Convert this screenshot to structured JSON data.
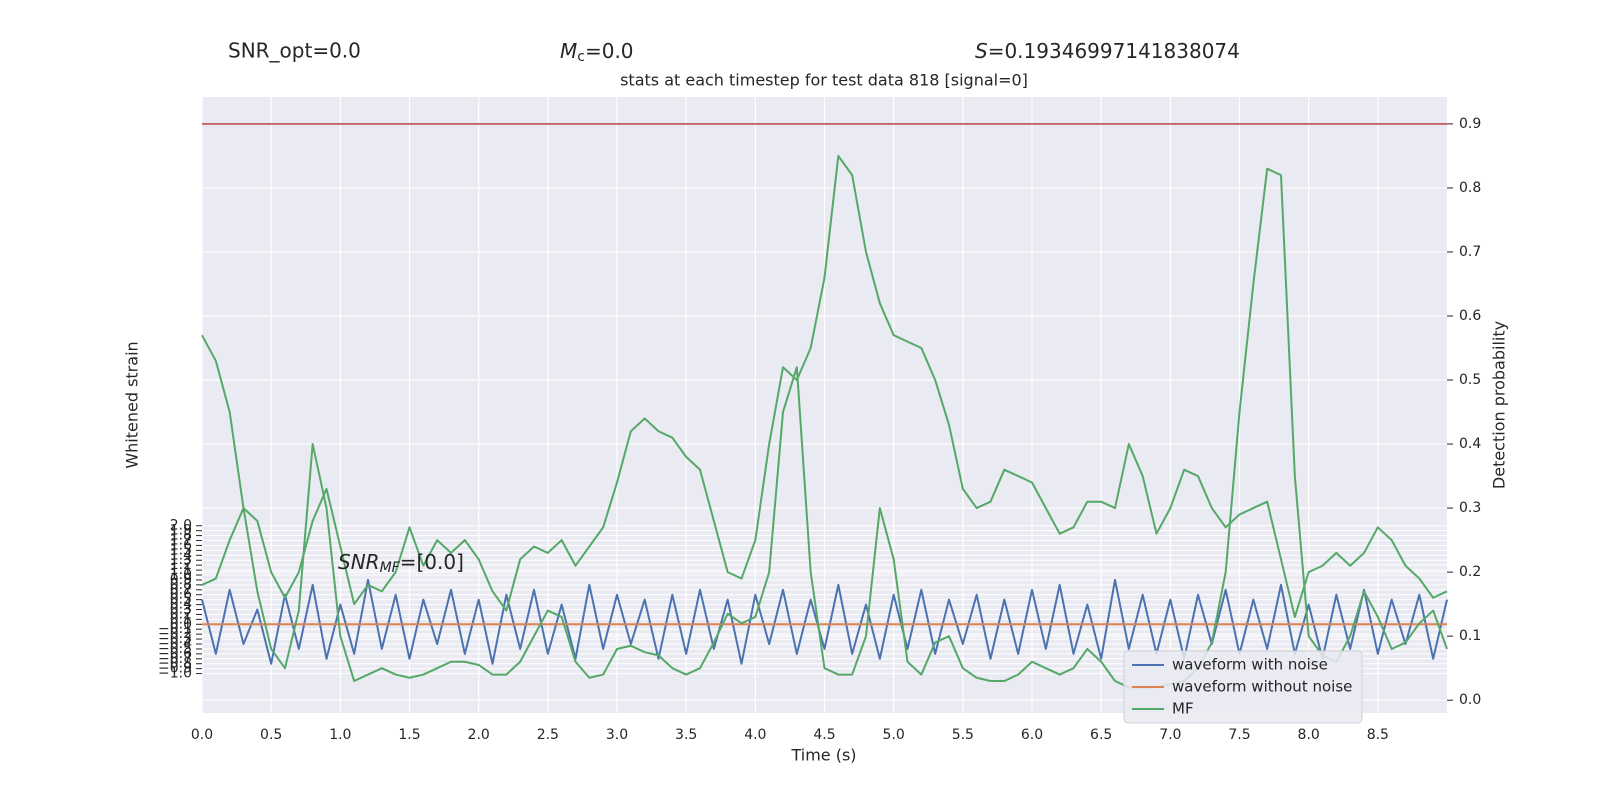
{
  "chart_data": {
    "type": "line",
    "title": "stats at each timestep for test data 818 [signal=0]",
    "annotations": {
      "snr_opt": "SNR_opt=0.0",
      "mc": {
        "symbol": "M",
        "subscript": "c",
        "text": "=0.0"
      },
      "s": {
        "symbol": "S",
        "text": "=0.19346997141838074"
      },
      "snr_mf": {
        "symbol": "SNR",
        "subscript": "MF",
        "text": "=[0.0]"
      }
    },
    "xlabel": "Time (s)",
    "ylabel": "Whitened strain",
    "y2label": "Detection probability",
    "xlim": [
      0,
      9
    ],
    "ylim": [
      -1.8,
      10.7
    ],
    "y2lim": [
      -0.02,
      0.942
    ],
    "xticks": [
      {
        "value": 0,
        "label": "0.0"
      },
      {
        "value": 0.5,
        "label": "0.5"
      },
      {
        "value": 1,
        "label": "1.0"
      },
      {
        "value": 1.5,
        "label": "1.5"
      },
      {
        "value": 2,
        "label": "2.0"
      },
      {
        "value": 2.5,
        "label": "2.5"
      },
      {
        "value": 3,
        "label": "3.0"
      },
      {
        "value": 3.5,
        "label": "3.5"
      },
      {
        "value": 4,
        "label": "4.0"
      },
      {
        "value": 4.5,
        "label": "4.5"
      },
      {
        "value": 5,
        "label": "5.0"
      },
      {
        "value": 5.5,
        "label": "5.5"
      },
      {
        "value": 6,
        "label": "6.0"
      },
      {
        "value": 6.5,
        "label": "6.5"
      },
      {
        "value": 7,
        "label": "7.0"
      },
      {
        "value": 7.5,
        "label": "7.5"
      },
      {
        "value": 8,
        "label": "8.0"
      },
      {
        "value": 8.5,
        "label": "8.5"
      }
    ],
    "yticks": [
      {
        "value": -1,
        "label": "−1.0"
      },
      {
        "value": -0.9,
        "label": "−0.9"
      },
      {
        "value": -0.8,
        "label": "−0.8"
      },
      {
        "value": -0.7,
        "label": "−0.7"
      },
      {
        "value": -0.6,
        "label": "−0.6"
      },
      {
        "value": -0.5,
        "label": "−0.5"
      },
      {
        "value": -0.4,
        "label": "−0.4"
      },
      {
        "value": -0.3,
        "label": "−0.3"
      },
      {
        "value": -0.2,
        "label": "−0.2"
      },
      {
        "value": -0.1,
        "label": "−0.1"
      },
      {
        "value": 0,
        "label": "0.0"
      },
      {
        "value": 0.1,
        "label": "0.1"
      },
      {
        "value": 0.2,
        "label": "0.2"
      },
      {
        "value": 0.3,
        "label": "0.3"
      },
      {
        "value": 0.4,
        "label": "0.4"
      },
      {
        "value": 0.5,
        "label": "0.5"
      },
      {
        "value": 0.6,
        "label": "0.6"
      },
      {
        "value": 0.7,
        "label": "0.7"
      },
      {
        "value": 0.8,
        "label": "0.8"
      },
      {
        "value": 0.9,
        "label": "0.9"
      },
      {
        "value": 1,
        "label": "1.0"
      },
      {
        "value": 1.1,
        "label": "1.1"
      },
      {
        "value": 1.2,
        "label": "1.2"
      },
      {
        "value": 1.3,
        "label": "1.3"
      },
      {
        "value": 1.4,
        "label": "1.4"
      },
      {
        "value": 1.5,
        "label": "1.5"
      },
      {
        "value": 1.6,
        "label": "1.6"
      },
      {
        "value": 1.7,
        "label": "1.7"
      },
      {
        "value": 1.8,
        "label": "1.8"
      },
      {
        "value": 1.9,
        "label": "1.9"
      },
      {
        "value": 2,
        "label": "2.0"
      }
    ],
    "y2ticks": [
      {
        "value": 0,
        "label": "0.0"
      },
      {
        "value": 0.1,
        "label": "0.1"
      },
      {
        "value": 0.2,
        "label": "0.2"
      },
      {
        "value": 0.3,
        "label": "0.3"
      },
      {
        "value": 0.4,
        "label": "0.4"
      },
      {
        "value": 0.5,
        "label": "0.5"
      },
      {
        "value": 0.6,
        "label": "0.6"
      },
      {
        "value": 0.7,
        "label": "0.7"
      },
      {
        "value": 0.8,
        "label": "0.8"
      },
      {
        "value": 0.9,
        "label": "0.9"
      }
    ],
    "grid": true,
    "legend": "lower right",
    "threshold": 0.9,
    "threshold_color": "#c44e52",
    "x": [
      0,
      0.1,
      0.2,
      0.3,
      0.4,
      0.5,
      0.6,
      0.7,
      0.8,
      0.9,
      1,
      1.1,
      1.2,
      1.3,
      1.4,
      1.5,
      1.6,
      1.7,
      1.8,
      1.9,
      2,
      2.1,
      2.2,
      2.3,
      2.4,
      2.5,
      2.6,
      2.7,
      2.8,
      2.9,
      3,
      3.1,
      3.2,
      3.3,
      3.4,
      3.5,
      3.6,
      3.7,
      3.8,
      3.9,
      4,
      4.1,
      4.2,
      4.3,
      4.4,
      4.5,
      4.6,
      4.7,
      4.8,
      4.9,
      5,
      5.1,
      5.2,
      5.3,
      5.4,
      5.5,
      5.6,
      5.7,
      5.8,
      5.9,
      6,
      6.1,
      6.2,
      6.3,
      6.4,
      6.5,
      6.6,
      6.7,
      6.8,
      6.9,
      7,
      7.1,
      7.2,
      7.3,
      7.4,
      7.5,
      7.6,
      7.7,
      7.8,
      7.9,
      8,
      8.1,
      8.2,
      8.3,
      8.4,
      8.5,
      8.6,
      8.7,
      8.8,
      8.9,
      9
    ],
    "series": [
      {
        "name": "waveform with noise",
        "color": "#4c72b0",
        "axis": "y",
        "values": [
          0.5,
          -0.6,
          0.7,
          -0.4,
          0.3,
          -0.8,
          0.6,
          -0.5,
          0.8,
          -0.7,
          0.4,
          -0.6,
          0.9,
          -0.5,
          0.6,
          -0.7,
          0.5,
          -0.4,
          0.7,
          -0.6,
          0.5,
          -0.8,
          0.6,
          -0.5,
          0.7,
          -0.6,
          0.4,
          -0.7,
          0.8,
          -0.5,
          0.6,
          -0.4,
          0.5,
          -0.7,
          0.6,
          -0.6,
          0.7,
          -0.5,
          0.5,
          -0.8,
          0.6,
          -0.4,
          0.7,
          -0.6,
          0.5,
          -0.5,
          0.8,
          -0.6,
          0.4,
          -0.7,
          0.6,
          -0.5,
          0.7,
          -0.6,
          0.5,
          -0.4,
          0.6,
          -0.7,
          0.5,
          -0.6,
          0.7,
          -0.5,
          0.8,
          -0.6,
          0.4,
          -0.7,
          0.9,
          -0.5,
          0.6,
          -0.6,
          0.5,
          -0.7,
          0.6,
          -0.4,
          0.7,
          -0.6,
          0.5,
          -0.5,
          0.8,
          -0.6,
          0.4,
          -0.7,
          0.6,
          -0.5,
          0.7,
          -0.6,
          0.5,
          -0.4,
          0.6,
          -0.7,
          0.5
        ]
      },
      {
        "name": "waveform without noise",
        "color": "#dd8452",
        "axis": "y",
        "values": [
          0,
          0,
          0,
          0,
          0,
          0,
          0,
          0,
          0,
          0,
          0,
          0,
          0,
          0,
          0,
          0,
          0,
          0,
          0,
          0,
          0,
          0,
          0,
          0,
          0,
          0,
          0,
          0,
          0,
          0,
          0,
          0,
          0,
          0,
          0,
          0,
          0,
          0,
          0,
          0,
          0,
          0,
          0,
          0,
          0,
          0,
          0,
          0,
          0,
          0,
          0,
          0,
          0,
          0,
          0,
          0,
          0,
          0,
          0,
          0,
          0,
          0,
          0,
          0,
          0,
          0,
          0,
          0,
          0,
          0,
          0,
          0,
          0,
          0,
          0,
          0,
          0,
          0,
          0,
          0,
          0,
          0,
          0,
          0,
          0,
          0,
          0,
          0,
          0,
          0,
          0
        ]
      },
      {
        "color": "#55a868",
        "axis": "y2",
        "values": [
          0.18,
          0.19,
          0.25,
          0.3,
          0.28,
          0.2,
          0.16,
          0.2,
          0.28,
          0.33,
          0.24,
          0.15,
          0.18,
          0.17,
          0.2,
          0.27,
          0.21,
          0.25,
          0.23,
          0.25,
          0.22,
          0.17,
          0.14,
          0.22,
          0.24,
          0.23,
          0.25,
          0.21,
          0.24,
          0.27,
          0.34,
          0.42,
          0.44,
          0.42,
          0.41,
          0.38,
          0.36,
          0.28,
          0.2,
          0.19,
          0.25,
          0.4,
          0.52,
          0.5,
          0.55,
          0.66,
          0.85,
          0.82,
          0.7,
          0.62,
          0.57,
          0.56,
          0.55,
          0.5,
          0.43,
          0.33,
          0.3,
          0.31,
          0.36,
          0.35,
          0.34,
          0.3,
          0.26,
          0.27,
          0.31,
          0.31,
          0.3,
          0.4,
          0.35,
          0.26,
          0.3,
          0.36,
          0.35,
          0.3,
          0.27,
          0.29,
          0.3,
          0.31,
          0.22,
          0.13,
          0.2,
          0.21,
          0.23,
          0.21,
          0.23,
          0.27,
          0.25,
          0.21,
          0.19,
          0.16,
          0.17
        ]
      },
      {
        "name": "MF",
        "color": "#55a868",
        "axis": "y2",
        "values": [
          0.57,
          0.53,
          0.45,
          0.3,
          0.17,
          0.08,
          0.05,
          0.14,
          0.4,
          0.3,
          0.1,
          0.03,
          0.04,
          0.05,
          0.04,
          0.035,
          0.04,
          0.05,
          0.06,
          0.06,
          0.055,
          0.04,
          0.04,
          0.06,
          0.1,
          0.14,
          0.13,
          0.06,
          0.035,
          0.04,
          0.08,
          0.085,
          0.075,
          0.07,
          0.05,
          0.04,
          0.05,
          0.09,
          0.135,
          0.12,
          0.13,
          0.2,
          0.45,
          0.52,
          0.2,
          0.05,
          0.04,
          0.04,
          0.1,
          0.3,
          0.22,
          0.06,
          0.04,
          0.09,
          0.1,
          0.05,
          0.035,
          0.03,
          0.03,
          0.04,
          0.06,
          0.05,
          0.04,
          0.05,
          0.08,
          0.06,
          0.03,
          0.02,
          0.02,
          0.02,
          0.025,
          0.03,
          0.05,
          0.09,
          0.2,
          0.45,
          0.65,
          0.83,
          0.82,
          0.35,
          0.1,
          0.07,
          0.06,
          0.1,
          0.17,
          0.13,
          0.08,
          0.09,
          0.12,
          0.14,
          0.08
        ]
      }
    ]
  }
}
